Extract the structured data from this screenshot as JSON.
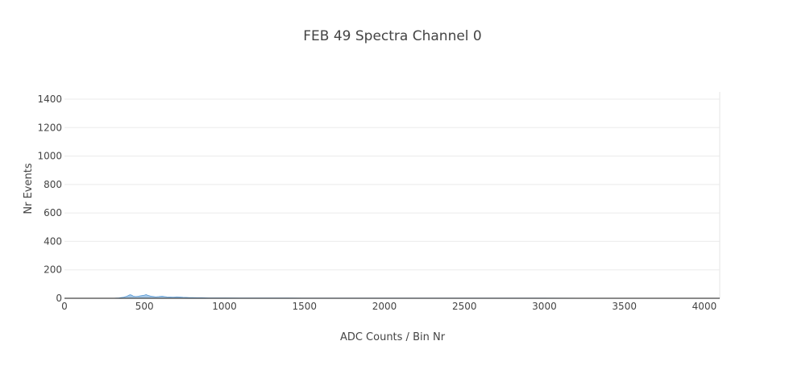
{
  "chart_data": {
    "type": "area",
    "title": "FEB 49 Spectra Channel 0",
    "xlabel": "ADC Counts / Bin Nr",
    "ylabel": "Nr Events",
    "xlim": [
      0,
      4096
    ],
    "ylim": [
      0,
      1400
    ],
    "xticks": [
      0,
      500,
      1000,
      1500,
      2000,
      2500,
      3000,
      3500,
      4000
    ],
    "yticks": [
      0,
      200,
      400,
      600,
      800,
      1000,
      1200,
      1400
    ],
    "grid": true,
    "legend": "none",
    "series": [
      {
        "color": "#5b9bd5",
        "x": [
          300,
          340,
          370,
          390,
          400,
          410,
          420,
          430,
          445,
          460,
          480,
          500,
          510,
          520,
          535,
          550,
          570,
          590,
          610,
          625,
          640,
          660,
          680,
          700,
          720,
          740,
          760,
          780,
          800,
          830,
          860,
          900,
          950,
          1000,
          1100,
          1200,
          1300,
          1400,
          1500,
          1700,
          2000,
          2300,
          2600,
          3000,
          3500,
          4000,
          4096
        ],
        "y": [
          0,
          3,
          8,
          14,
          20,
          25,
          22,
          15,
          12,
          14,
          18,
          22,
          26,
          21,
          16,
          13,
          10,
          12,
          15,
          12,
          10,
          9,
          8,
          10,
          9,
          7,
          6,
          5,
          5,
          4,
          4,
          3,
          3,
          3,
          2,
          2,
          2,
          2,
          1,
          1,
          1,
          1,
          1,
          1,
          0,
          0,
          0
        ]
      }
    ]
  }
}
